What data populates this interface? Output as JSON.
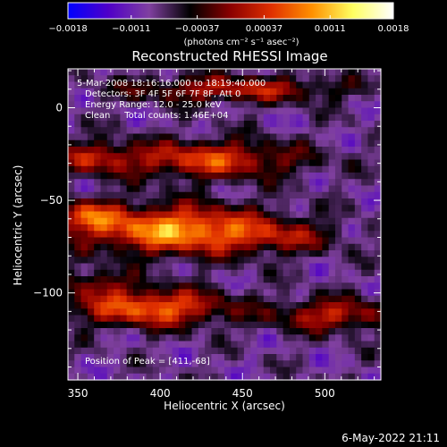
{
  "chart_data": {
    "type": "heatmap",
    "title": "Reconstructed RHESSI Image",
    "xlabel": "Heliocentric X (arcsec)",
    "ylabel": "Heliocentric Y (arcsec)",
    "xlim": [
      344,
      534
    ],
    "ylim": [
      -147,
      21
    ],
    "x_ticks": [
      350,
      400,
      450,
      500
    ],
    "y_ticks": [
      0,
      -50,
      -100
    ],
    "x_tick_labels": [
      "350",
      "400",
      "450",
      "500"
    ],
    "y_tick_labels": [
      "0",
      "−50",
      "−100"
    ],
    "colorbar": {
      "range": [
        -0.0018,
        0.0018
      ],
      "tick_values": [
        -0.0018,
        -0.0011,
        -0.00037,
        0.00037,
        0.0011,
        0.0018
      ],
      "tick_labels": [
        "−0.0018",
        "−0.0011",
        "−0.00037",
        "0.00037",
        "0.0011",
        "0.0018"
      ],
      "units_label": "(photons cm⁻² s⁻¹ asec⁻²)",
      "colormap": [
        "#0000ff",
        "#5000c8",
        "#8040a0",
        "#000000",
        "#8b0000",
        "#e03000",
        "#ff9000",
        "#ffff60",
        "#ffffff"
      ]
    },
    "annotations": [
      "5-Mar-2008 18:16:16.000 to 18:19:40.000",
      "Detectors: 3F 4F 5F 6F 7F 8F, Att 0",
      "Energy Range: 12.0 - 25.0 keV",
      "Clean     Total counts: 1.46E+04"
    ],
    "peak_label": "Position of Peak = [411,-68]",
    "peak": [
      411,
      -68
    ],
    "sources": [
      {
        "x": 410,
        "y": -66,
        "sx": 40,
        "sy": 9,
        "amp": 0.0018
      },
      {
        "x": 395,
        "y": -108,
        "sx": 32,
        "sy": 7,
        "amp": 0.00155
      },
      {
        "x": 430,
        "y": -28,
        "sx": 38,
        "sy": 7,
        "amp": 0.0013
      },
      {
        "x": 445,
        "y": 10,
        "sx": 45,
        "sy": 5,
        "amp": 0.00105
      },
      {
        "x": 505,
        "y": -112,
        "sx": 25,
        "sy": 6,
        "amp": 0.0011
      },
      {
        "x": 360,
        "y": -27,
        "sx": 16,
        "sy": 6,
        "amp": 0.0009
      },
      {
        "x": 355,
        "y": -58,
        "sx": 14,
        "sy": 6,
        "amp": 0.001
      },
      {
        "x": 475,
        "y": -70,
        "sx": 25,
        "sy": 6,
        "amp": 0.0006
      },
      {
        "x": 360,
        "y": -95,
        "sx": 15,
        "sy": 5,
        "amp": 0.00075
      }
    ]
  },
  "footer": {
    "timestamp": "6-May-2022 21:11"
  }
}
